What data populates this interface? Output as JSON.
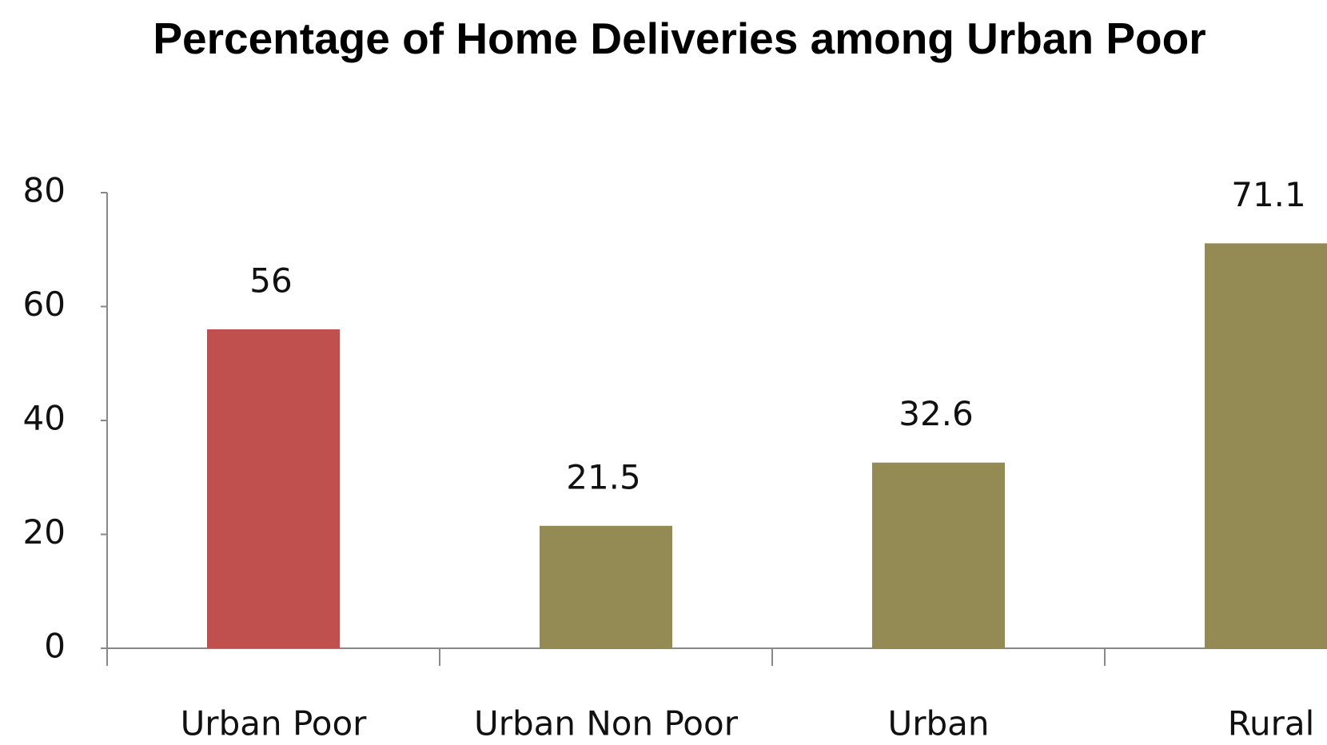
{
  "chart_data": {
    "type": "bar",
    "title": "Percentage of Home Deliveries among Urban Poor",
    "categories": [
      "Urban Poor",
      "Urban Non Poor",
      "Urban",
      "Rural"
    ],
    "values": [
      56,
      21.5,
      32.6,
      71.1
    ],
    "colors": [
      "#c0504d",
      "#948a54",
      "#948a54",
      "#948a54"
    ],
    "ylim": [
      0,
      80
    ],
    "yticks": [
      0,
      20,
      40,
      60,
      80
    ],
    "grid": false
  }
}
